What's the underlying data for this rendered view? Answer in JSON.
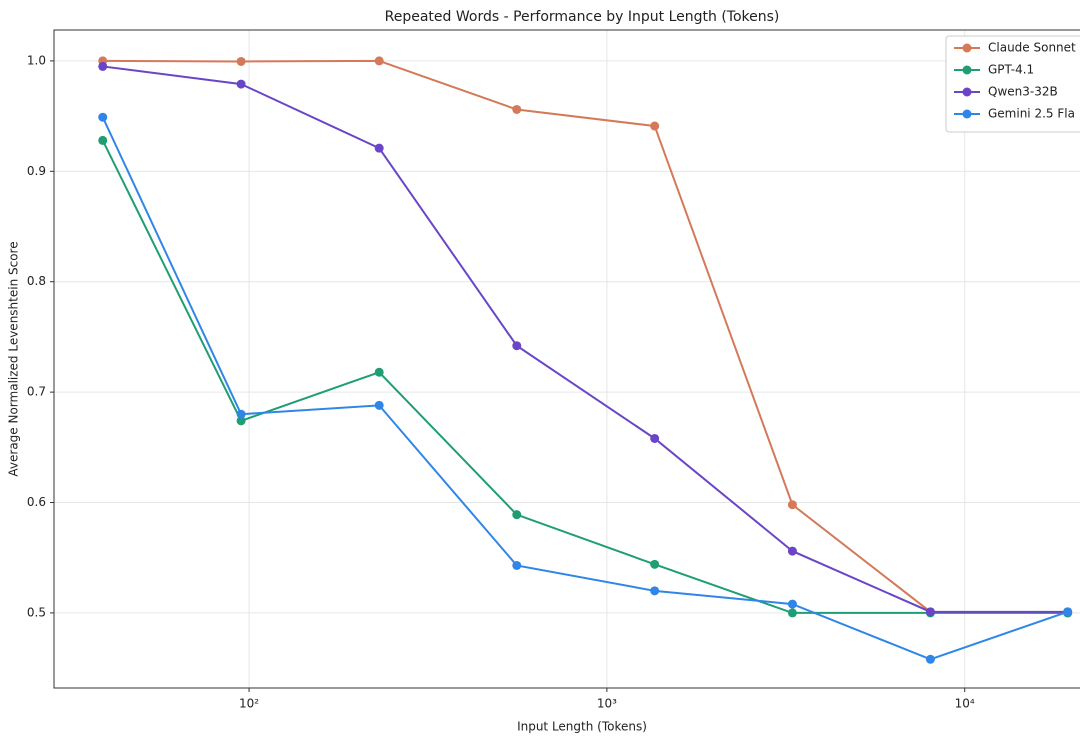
{
  "chart_data": {
    "type": "line",
    "title": "Repeated Words - Performance by Input Length (Tokens)",
    "xlabel": "Input Length (Tokens)",
    "ylabel": "Average Normalized Levenshtein Score",
    "x": [
      39,
      95,
      231,
      560,
      1360,
      3300,
      8020,
      19400
    ],
    "xscale": "log",
    "xlim": [
      28.5,
      21000
    ],
    "xticks": [
      {
        "value": 100,
        "label": "10²"
      },
      {
        "value": 1000,
        "label": "10³"
      },
      {
        "value": 10000,
        "label": "10⁴"
      }
    ],
    "ylim": [
      0.432,
      1.028
    ],
    "yticks": [
      0.5,
      0.6,
      0.7,
      0.8,
      0.9,
      {
        "value": 1,
        "label": "1.0"
      }
    ],
    "grid": true,
    "legend": "upper right",
    "series": [
      {
        "name": "Claude Sonnet",
        "color": "#d4795a",
        "values": [
          1.0,
          0.9995,
          1.0,
          0.956,
          0.941,
          0.598,
          0.501,
          0.5
        ]
      },
      {
        "name": "GPT-4.1",
        "color": "#1f9e74",
        "values": [
          0.928,
          0.674,
          0.718,
          0.589,
          0.544,
          0.5,
          0.5,
          0.5
        ]
      },
      {
        "name": "Qwen3-32B",
        "color": "#6a45c8",
        "values": [
          0.995,
          0.979,
          0.921,
          0.742,
          0.658,
          0.556,
          0.501,
          0.501
        ]
      },
      {
        "name": "Gemini 2.5 Fla",
        "color": "#2f86e8",
        "values": [
          0.949,
          0.68,
          0.688,
          0.543,
          0.52,
          0.508,
          0.458,
          0.501
        ]
      }
    ]
  }
}
